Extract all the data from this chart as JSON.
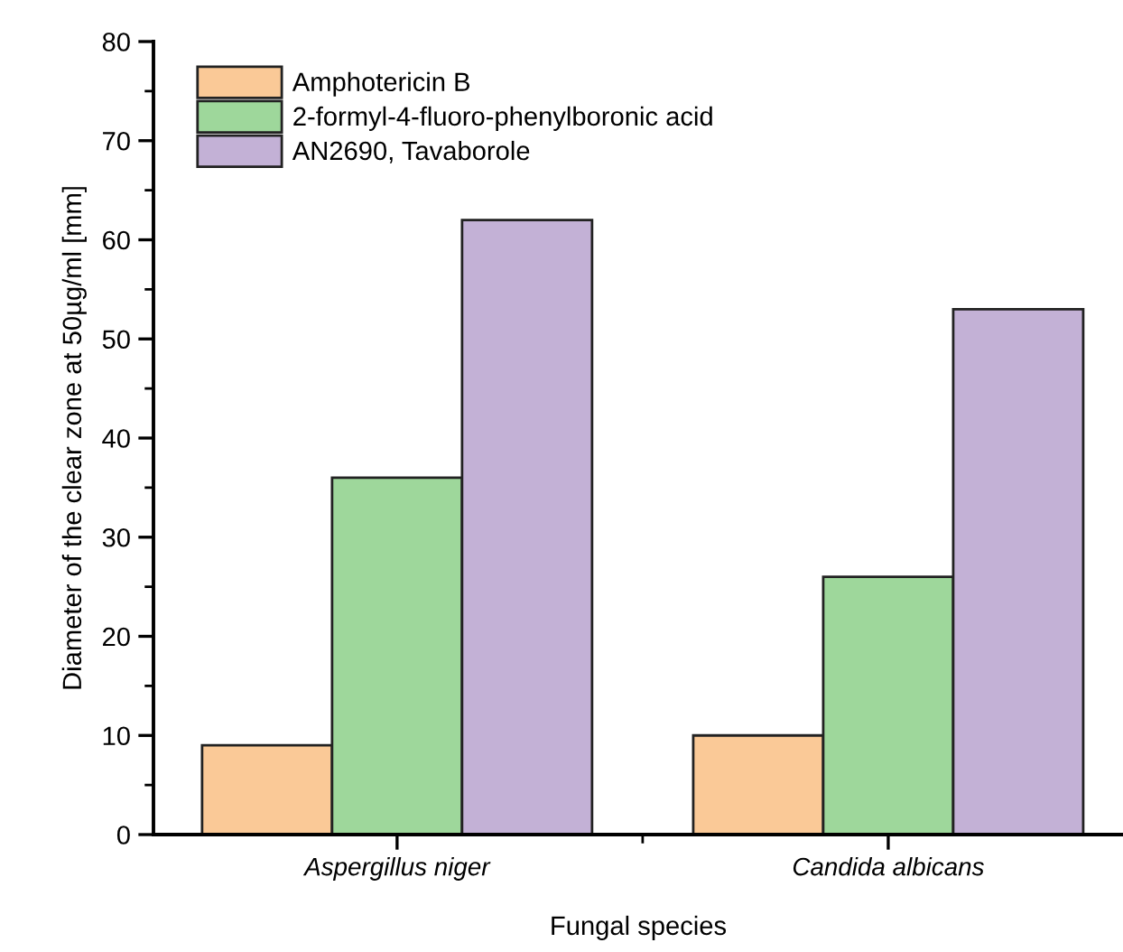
{
  "chart_data": {
    "type": "bar",
    "xlabel": "Fungal species",
    "ylabel": "Diameter of the clear zone at 50µg/ml [mm]",
    "categories": [
      "Aspergillus niger",
      "Candida albicans"
    ],
    "series": [
      {
        "name": "Amphotericin B",
        "color": "#fac997",
        "values": [
          9,
          10
        ]
      },
      {
        "name": "2-formyl-4-fluoro-phenylboronic acid",
        "color": "#9ed79b",
        "values": [
          36,
          26
        ]
      },
      {
        "name": "AN2690, Tavaborole",
        "color": "#c3b1d6",
        "values": [
          62,
          53
        ]
      }
    ],
    "ylim": [
      0,
      80
    ],
    "yticks": [
      0,
      {
        "value": 5,
        "label": null
      },
      10,
      {
        "value": 15,
        "label": null
      },
      20,
      {
        "value": 25,
        "label": null
      },
      30,
      {
        "value": 35,
        "label": null
      },
      40,
      {
        "value": 45,
        "label": null
      },
      50,
      {
        "value": 55,
        "label": null
      },
      60,
      {
        "value": 65,
        "label": null
      },
      70,
      {
        "value": 75,
        "label": null
      },
      80
    ],
    "grid": false,
    "legend": "top left"
  }
}
